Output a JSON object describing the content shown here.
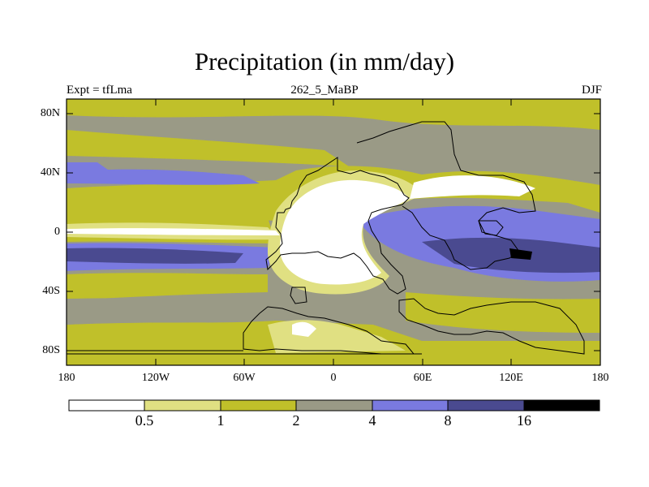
{
  "title": "Precipitation (in mm/day)",
  "experiment": "Expt = tfLma",
  "case_name": "262_5_MaBP",
  "season": "DJF",
  "lat_ticks": [
    "80N",
    "40N",
    "0",
    "40S",
    "80S"
  ],
  "lon_ticks": [
    "180",
    "120W",
    "60W",
    "0",
    "60E",
    "120E",
    "180"
  ],
  "colorbar": {
    "labels": [
      "0.5",
      "1",
      "2",
      "4",
      "8",
      "16"
    ],
    "colors": [
      "#ffffff",
      "#e0e082",
      "#c0c02a",
      "#9a9a86",
      "#7a7ae0",
      "#4a4a90",
      "#000000"
    ]
  }
}
